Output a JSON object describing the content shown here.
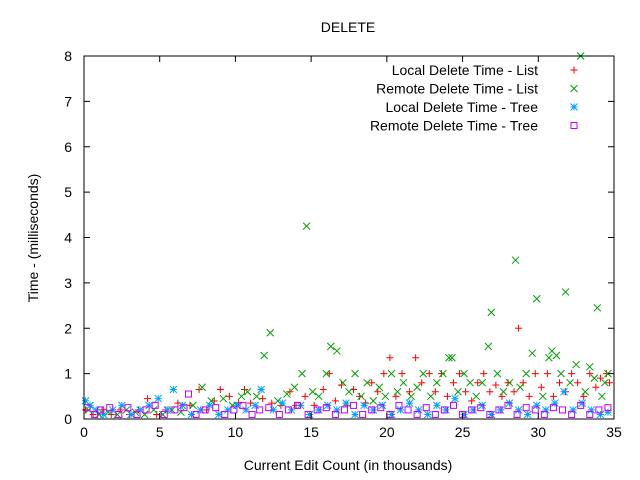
{
  "chart_data": {
    "type": "scatter",
    "title": "DELETE",
    "xlabel": "Current Edit Count (in thousands)",
    "ylabel": "Time - (milliseconds)",
    "xlim": [
      0,
      35
    ],
    "ylim": [
      0,
      8
    ],
    "xticks": [
      0,
      5,
      10,
      15,
      20,
      25,
      30,
      35
    ],
    "yticks": [
      0,
      1,
      2,
      3,
      4,
      5,
      6,
      7,
      8
    ],
    "grid": false,
    "legend_position": "top-right",
    "series": [
      {
        "name": "Local Delete Time - List",
        "marker": "plus",
        "color": "#ff0000",
        "points": [
          [
            0.1,
            0.2
          ],
          [
            0.6,
            0.1
          ],
          [
            1.2,
            0.2
          ],
          [
            1.8,
            0.1
          ],
          [
            2.4,
            0.2
          ],
          [
            3.0,
            0.1
          ],
          [
            3.6,
            0.2
          ],
          [
            4.2,
            0.45
          ],
          [
            4.8,
            0.1
          ],
          [
            5.4,
            0.2
          ],
          [
            6.2,
            0.35
          ],
          [
            7.0,
            0.3
          ],
          [
            7.6,
            0.65
          ],
          [
            8.1,
            0.2
          ],
          [
            8.6,
            0.4
          ],
          [
            9.0,
            0.65
          ],
          [
            9.6,
            0.5
          ],
          [
            10.2,
            0.35
          ],
          [
            10.6,
            0.65
          ],
          [
            11.0,
            0.35
          ],
          [
            11.8,
            0.45
          ],
          [
            12.4,
            0.35
          ],
          [
            13.0,
            0.3
          ],
          [
            13.6,
            0.6
          ],
          [
            14.0,
            0.3
          ],
          [
            14.6,
            0.5
          ],
          [
            15.2,
            0.3
          ],
          [
            15.8,
            0.65
          ],
          [
            16.2,
            1.0
          ],
          [
            16.6,
            0.4
          ],
          [
            17.0,
            0.75
          ],
          [
            17.4,
            0.3
          ],
          [
            17.8,
            0.65
          ],
          [
            18.2,
            0.5
          ],
          [
            18.6,
            0.35
          ],
          [
            19.0,
            0.8
          ],
          [
            19.4,
            0.6
          ],
          [
            19.8,
            1.0
          ],
          [
            20.2,
            1.35
          ],
          [
            20.6,
            0.5
          ],
          [
            21.0,
            1.0
          ],
          [
            21.5,
            0.6
          ],
          [
            21.9,
            1.35
          ],
          [
            22.3,
            0.8
          ],
          [
            22.8,
            1.0
          ],
          [
            23.2,
            0.6
          ],
          [
            23.6,
            1.0
          ],
          [
            24.0,
            0.5
          ],
          [
            24.4,
            0.8
          ],
          [
            24.8,
            1.0
          ],
          [
            25.2,
            0.6
          ],
          [
            25.6,
            0.4
          ],
          [
            26.0,
            0.8
          ],
          [
            26.4,
            1.0
          ],
          [
            26.8,
            0.6
          ],
          [
            27.2,
            0.75
          ],
          [
            27.6,
            0.5
          ],
          [
            28.0,
            0.8
          ],
          [
            28.4,
            0.6
          ],
          [
            28.7,
            2.0
          ],
          [
            29.0,
            0.8
          ],
          [
            29.4,
            0.5
          ],
          [
            29.8,
            1.0
          ],
          [
            30.2,
            0.7
          ],
          [
            30.6,
            1.0
          ],
          [
            31.0,
            0.5
          ],
          [
            31.4,
            0.8
          ],
          [
            31.8,
            0.6
          ],
          [
            32.2,
            1.0
          ],
          [
            32.6,
            0.8
          ],
          [
            33.0,
            0.5
          ],
          [
            33.4,
            1.0
          ],
          [
            33.8,
            0.7
          ],
          [
            34.1,
            0.9
          ],
          [
            34.5,
            1.0
          ],
          [
            34.7,
            0.8
          ]
        ]
      },
      {
        "name": "Remote Delete Time - List",
        "marker": "cross",
        "color": "#00a000",
        "points": [
          [
            0.3,
            0.2
          ],
          [
            1.0,
            0.1
          ],
          [
            1.6,
            0.15
          ],
          [
            2.2,
            0.1
          ],
          [
            2.8,
            0.2
          ],
          [
            3.4,
            0.15
          ],
          [
            4.0,
            0.1
          ],
          [
            4.6,
            0.2
          ],
          [
            5.2,
            0.1
          ],
          [
            5.8,
            0.2
          ],
          [
            6.4,
            0.15
          ],
          [
            7.2,
            0.3
          ],
          [
            7.8,
            0.7
          ],
          [
            8.4,
            0.4
          ],
          [
            9.2,
            0.45
          ],
          [
            9.8,
            0.3
          ],
          [
            10.4,
            0.5
          ],
          [
            10.8,
            0.6
          ],
          [
            11.4,
            0.5
          ],
          [
            11.9,
            1.4
          ],
          [
            12.3,
            1.9
          ],
          [
            12.8,
            0.4
          ],
          [
            13.4,
            0.55
          ],
          [
            13.9,
            0.7
          ],
          [
            14.4,
            1.0
          ],
          [
            14.7,
            4.25
          ],
          [
            15.1,
            0.6
          ],
          [
            15.5,
            0.5
          ],
          [
            16.0,
            1.0
          ],
          [
            16.3,
            1.6
          ],
          [
            16.7,
            1.5
          ],
          [
            17.1,
            0.8
          ],
          [
            17.5,
            0.6
          ],
          [
            17.9,
            1.0
          ],
          [
            18.3,
            0.5
          ],
          [
            18.7,
            0.8
          ],
          [
            19.1,
            0.4
          ],
          [
            19.5,
            0.7
          ],
          [
            19.9,
            0.5
          ],
          [
            20.3,
            1.0
          ],
          [
            20.7,
            0.6
          ],
          [
            21.1,
            0.8
          ],
          [
            21.6,
            0.5
          ],
          [
            22.0,
            0.7
          ],
          [
            22.4,
            1.0
          ],
          [
            22.9,
            0.5
          ],
          [
            23.3,
            0.8
          ],
          [
            23.7,
            1.0
          ],
          [
            24.1,
            1.35
          ],
          [
            24.3,
            1.35
          ],
          [
            24.7,
            0.6
          ],
          [
            25.1,
            1.0
          ],
          [
            25.5,
            0.8
          ],
          [
            25.9,
            0.5
          ],
          [
            26.3,
            0.8
          ],
          [
            26.7,
            1.6
          ],
          [
            26.9,
            2.35
          ],
          [
            27.3,
            1.0
          ],
          [
            27.7,
            0.6
          ],
          [
            28.1,
            0.8
          ],
          [
            28.5,
            3.5
          ],
          [
            28.8,
            0.7
          ],
          [
            29.2,
            1.0
          ],
          [
            29.6,
            1.45
          ],
          [
            29.9,
            2.65
          ],
          [
            30.3,
            0.5
          ],
          [
            30.7,
            1.35
          ],
          [
            30.9,
            1.5
          ],
          [
            31.2,
            1.4
          ],
          [
            31.5,
            1.0
          ],
          [
            31.8,
            2.8
          ],
          [
            32.1,
            0.8
          ],
          [
            32.5,
            1.2
          ],
          [
            32.8,
            8.0
          ],
          [
            33.1,
            0.6
          ],
          [
            33.4,
            1.15
          ],
          [
            33.7,
            0.9
          ],
          [
            33.9,
            2.45
          ],
          [
            34.2,
            0.5
          ],
          [
            34.4,
            0.8
          ],
          [
            34.6,
            1.0
          ]
        ]
      },
      {
        "name": "Local Delete Time - Tree",
        "marker": "star",
        "color": "#00a0ff",
        "points": [
          [
            0.1,
            0.4
          ],
          [
            0.4,
            0.3
          ],
          [
            0.8,
            0.2
          ],
          [
            1.3,
            0.1
          ],
          [
            1.9,
            0.2
          ],
          [
            2.5,
            0.3
          ],
          [
            3.1,
            0.1
          ],
          [
            3.7,
            0.2
          ],
          [
            4.3,
            0.3
          ],
          [
            4.9,
            0.45
          ],
          [
            5.5,
            0.2
          ],
          [
            5.9,
            0.65
          ],
          [
            6.5,
            0.3
          ],
          [
            7.1,
            0.1
          ],
          [
            7.7,
            0.2
          ],
          [
            8.3,
            0.3
          ],
          [
            8.9,
            0.1
          ],
          [
            9.5,
            0.2
          ],
          [
            10.1,
            0.3
          ],
          [
            10.7,
            0.2
          ],
          [
            11.3,
            0.3
          ],
          [
            11.7,
            0.65
          ],
          [
            12.5,
            0.2
          ],
          [
            13.1,
            0.35
          ],
          [
            13.7,
            0.2
          ],
          [
            14.3,
            0.3
          ],
          [
            14.9,
            0.1
          ],
          [
            15.5,
            0.2
          ],
          [
            16.1,
            0.3
          ],
          [
            16.7,
            0.2
          ],
          [
            17.3,
            0.35
          ],
          [
            17.9,
            0.1
          ],
          [
            18.5,
            0.3
          ],
          [
            19.1,
            0.2
          ],
          [
            19.7,
            0.3
          ],
          [
            20.3,
            0.1
          ],
          [
            20.9,
            0.2
          ],
          [
            21.5,
            0.35
          ],
          [
            22.1,
            0.2
          ],
          [
            22.7,
            0.1
          ],
          [
            23.3,
            0.3
          ],
          [
            23.9,
            0.2
          ],
          [
            24.5,
            0.45
          ],
          [
            25.1,
            0.1
          ],
          [
            25.7,
            0.2
          ],
          [
            26.3,
            0.3
          ],
          [
            26.9,
            0.1
          ],
          [
            27.5,
            0.2
          ],
          [
            28.1,
            0.35
          ],
          [
            28.7,
            0.2
          ],
          [
            29.3,
            0.1
          ],
          [
            29.9,
            0.3
          ],
          [
            30.5,
            0.2
          ],
          [
            31.1,
            0.35
          ],
          [
            31.7,
            0.6
          ],
          [
            32.3,
            0.2
          ],
          [
            32.9,
            0.35
          ],
          [
            33.5,
            0.2
          ],
          [
            34.1,
            0.1
          ],
          [
            34.6,
            0.15
          ]
        ]
      },
      {
        "name": "Remote Delete Time - Tree",
        "marker": "square",
        "color": "#c000ff",
        "points": [
          [
            0.2,
            0.25
          ],
          [
            0.7,
            0.1
          ],
          [
            1.1,
            0.2
          ],
          [
            1.7,
            0.25
          ],
          [
            2.3,
            0.1
          ],
          [
            2.9,
            0.25
          ],
          [
            3.5,
            0.1
          ],
          [
            4.1,
            0.2
          ],
          [
            4.7,
            0.3
          ],
          [
            5.3,
            0.1
          ],
          [
            6.0,
            0.2
          ],
          [
            6.6,
            0.25
          ],
          [
            6.9,
            0.55
          ],
          [
            7.4,
            0.1
          ],
          [
            8.0,
            0.2
          ],
          [
            8.7,
            0.25
          ],
          [
            9.3,
            0.1
          ],
          [
            9.9,
            0.2
          ],
          [
            10.5,
            0.3
          ],
          [
            11.1,
            0.1
          ],
          [
            11.6,
            0.2
          ],
          [
            12.2,
            0.25
          ],
          [
            12.9,
            0.1
          ],
          [
            13.5,
            0.2
          ],
          [
            14.1,
            0.3
          ],
          [
            14.8,
            0.1
          ],
          [
            15.4,
            0.2
          ],
          [
            16.0,
            0.25
          ],
          [
            16.6,
            0.1
          ],
          [
            17.2,
            0.2
          ],
          [
            17.8,
            0.3
          ],
          [
            18.4,
            0.1
          ],
          [
            19.0,
            0.2
          ],
          [
            19.6,
            0.25
          ],
          [
            20.2,
            0.1
          ],
          [
            20.8,
            0.3
          ],
          [
            21.4,
            0.2
          ],
          [
            22.0,
            0.1
          ],
          [
            22.6,
            0.25
          ],
          [
            23.2,
            0.1
          ],
          [
            23.8,
            0.2
          ],
          [
            24.4,
            0.3
          ],
          [
            25.0,
            0.1
          ],
          [
            25.6,
            0.2
          ],
          [
            26.2,
            0.25
          ],
          [
            26.8,
            0.1
          ],
          [
            27.4,
            0.2
          ],
          [
            28.0,
            0.3
          ],
          [
            28.6,
            0.1
          ],
          [
            29.2,
            0.25
          ],
          [
            29.8,
            0.2
          ],
          [
            30.4,
            0.1
          ],
          [
            31.0,
            0.25
          ],
          [
            31.6,
            0.2
          ],
          [
            32.2,
            0.1
          ],
          [
            32.8,
            0.3
          ],
          [
            33.4,
            0.1
          ],
          [
            34.0,
            0.2
          ],
          [
            34.6,
            0.25
          ]
        ]
      }
    ]
  }
}
